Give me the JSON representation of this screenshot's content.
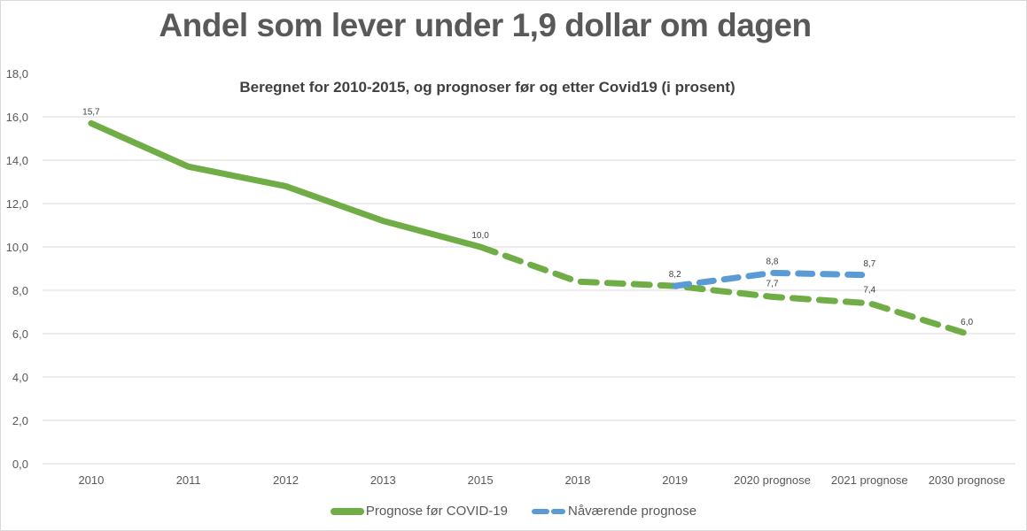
{
  "chart_data": {
    "type": "line",
    "title": "Andel som lever under 1,9 dollar om dagen",
    "subtitle": "Beregnet  for 2010-2015,  og prognoser før og etter Covid19 (i prosent)",
    "xlabel": "",
    "ylabel": "",
    "ylim": [
      0,
      18
    ],
    "yticks": [
      "0,0",
      "2,0",
      "4,0",
      "6,0",
      "8,0",
      "10,0",
      "12,0",
      "14,0",
      "16,0",
      "18,0"
    ],
    "grid": true,
    "legend_position": "bottom",
    "categories": [
      "2010",
      "2011",
      "2012",
      "2013",
      "2015",
      "2018",
      "2019",
      "2020 prognose",
      "2021 prognose",
      "2030 prognose"
    ],
    "series": [
      {
        "name": "Prognose før COVID-19",
        "color": "#70ad47",
        "values": [
          15.7,
          13.7,
          12.8,
          11.2,
          10.0,
          8.4,
          8.2,
          7.7,
          7.4,
          6.0
        ],
        "solid_until_index": 4,
        "labels": {
          "0": "15,7",
          "4": "10,0",
          "7": "7,7",
          "8": "7,4",
          "9": "6,0"
        }
      },
      {
        "name": "Nåværende prognose",
        "color": "#5b9bd5",
        "values": [
          null,
          null,
          null,
          null,
          null,
          null,
          8.2,
          8.8,
          8.7,
          null
        ],
        "labels": {
          "6": "8,2",
          "7": "8,8",
          "8": "8,7"
        }
      }
    ]
  }
}
